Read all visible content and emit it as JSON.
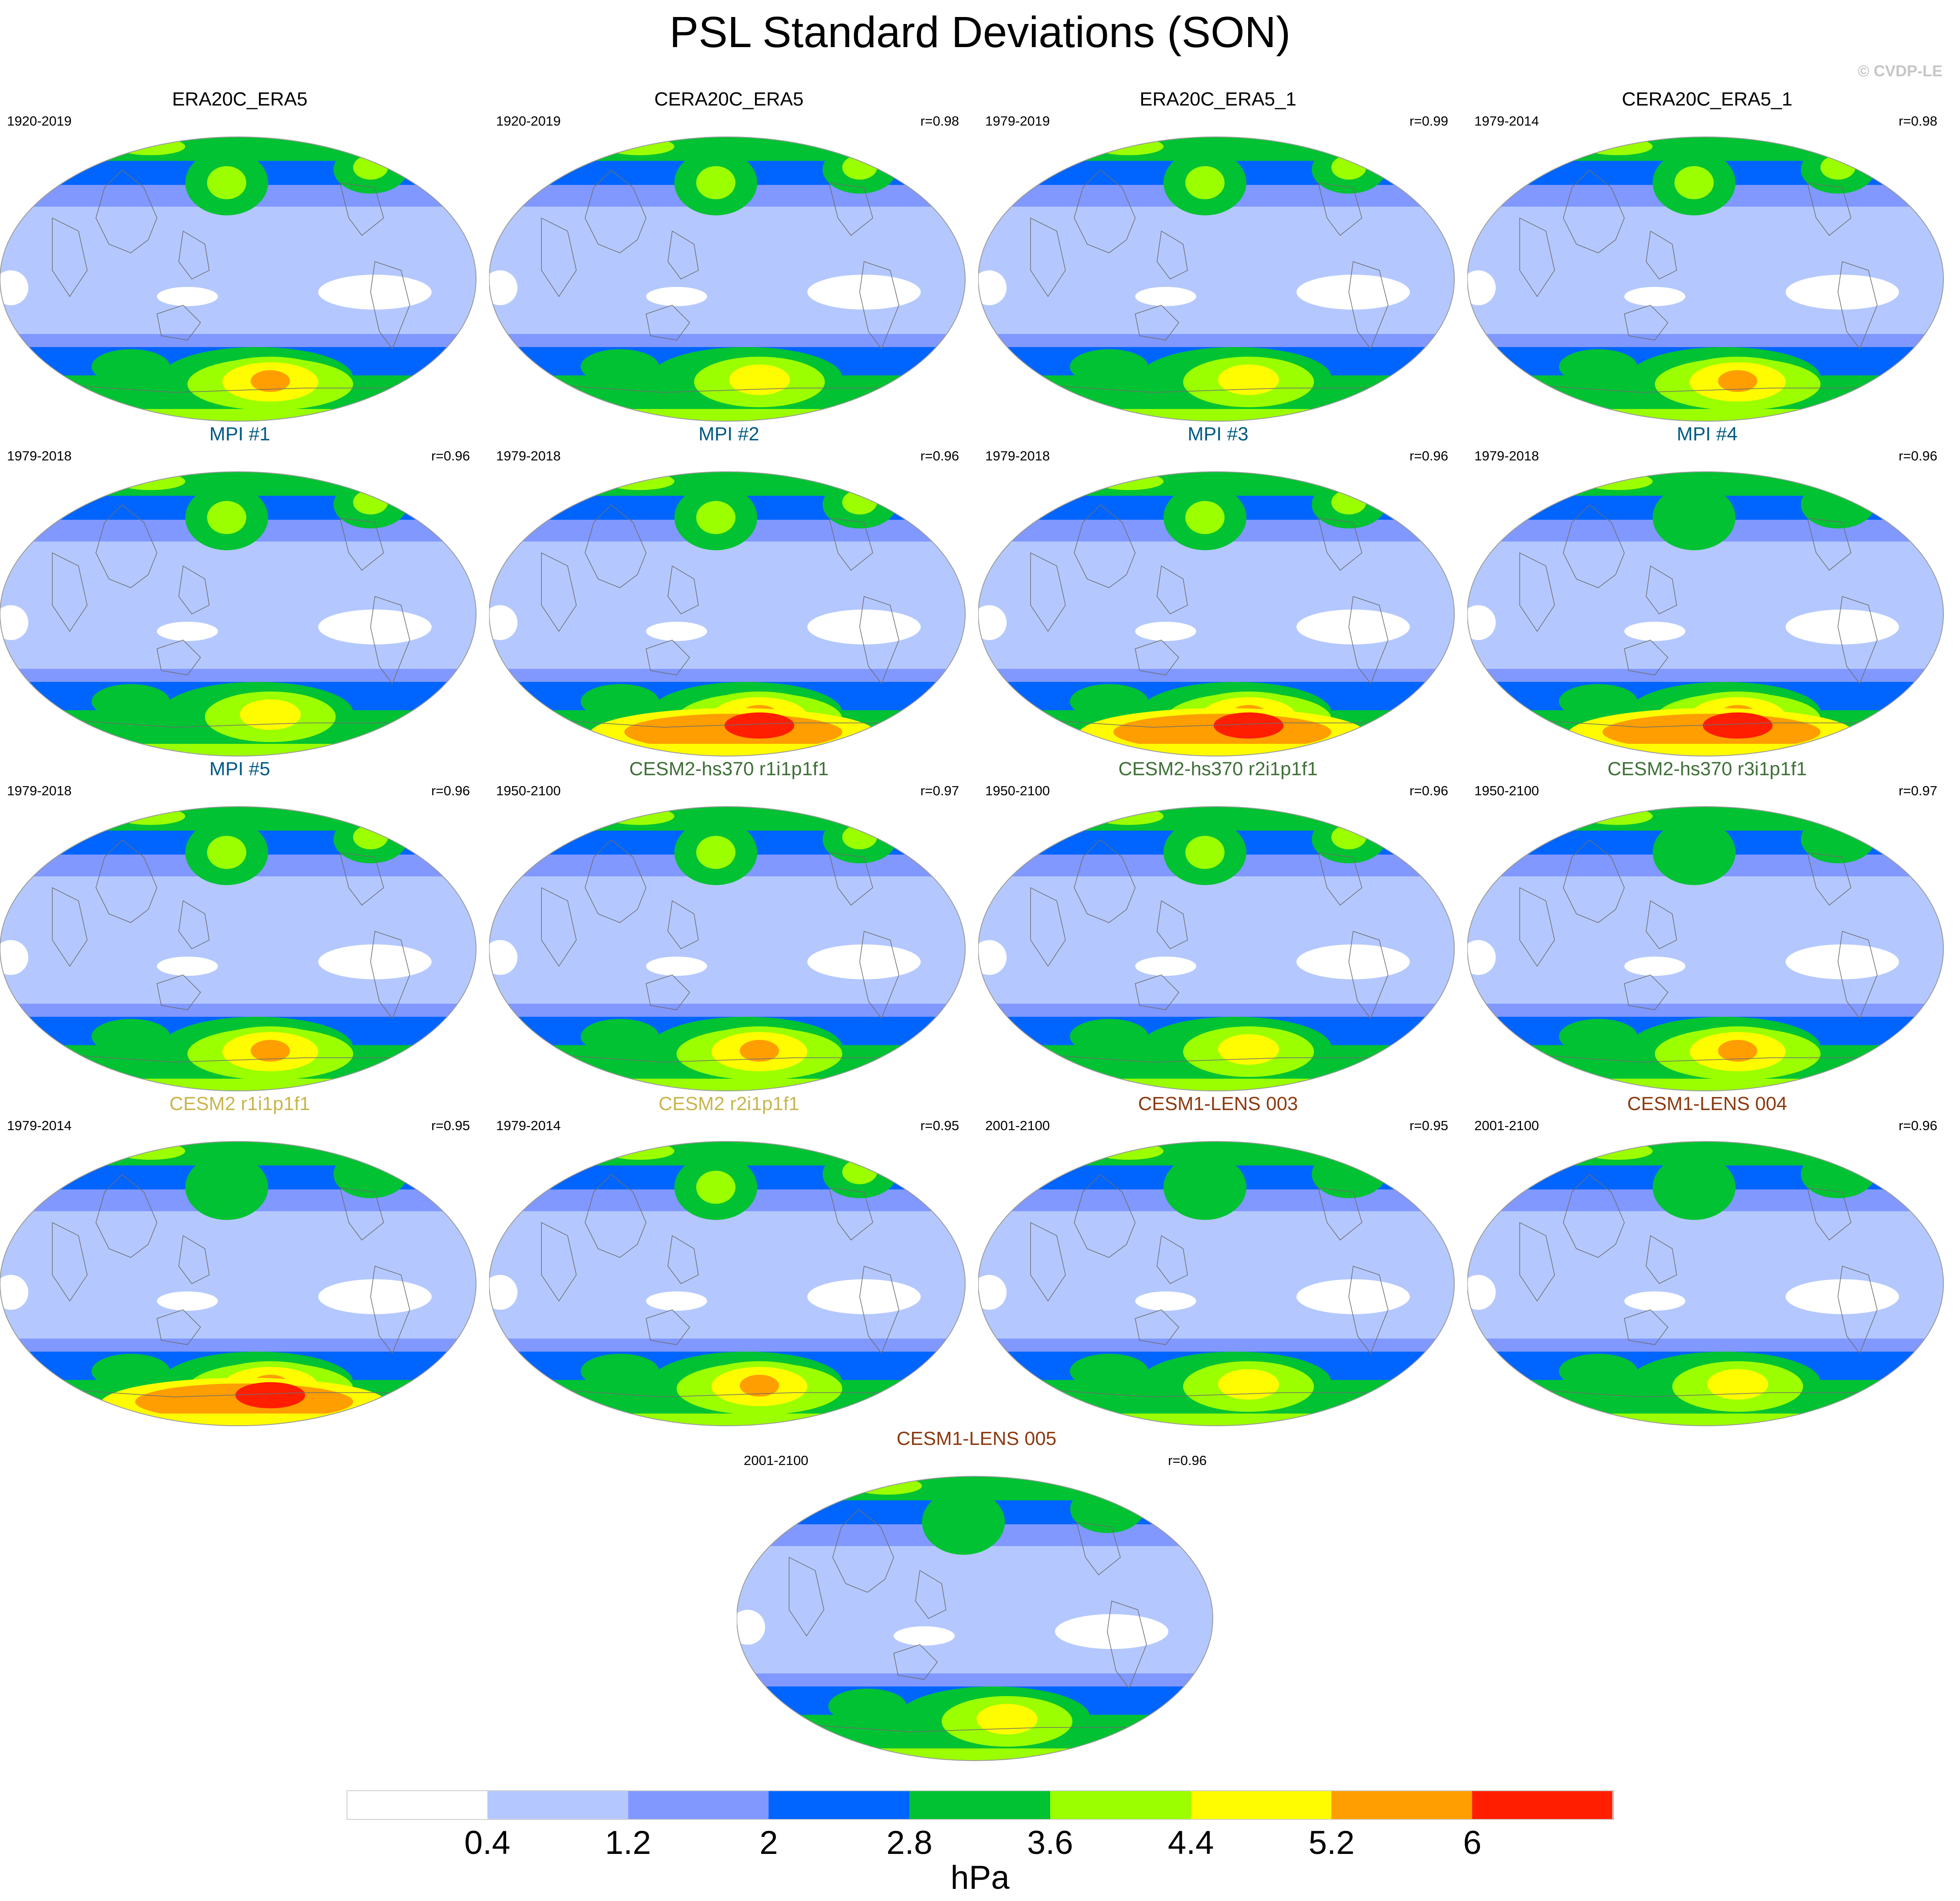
{
  "title": "PSL Standard Deviations (SON)",
  "copyright": "© CVDP-LE",
  "colorbar": {
    "colors": [
      "#ffffff",
      "#b4c8ff",
      "#8098ff",
      "#0064ff",
      "#00c232",
      "#9bff00",
      "#fffb00",
      "#ff9e00",
      "#ff1e00"
    ],
    "labels": [
      "0.4",
      "1.2",
      "2",
      "2.8",
      "3.6",
      "4.4",
      "5.2",
      "6"
    ],
    "units": "hPa"
  },
  "panels": [
    {
      "title": "ERA20C_ERA5",
      "color": "#000000",
      "period": "1920-2019",
      "corr": "",
      "south_peak": 4,
      "north_peak": 3
    },
    {
      "title": "CERA20C_ERA5",
      "color": "#000000",
      "period": "1920-2019",
      "corr": "r=0.98",
      "south_peak": 3,
      "north_peak": 3
    },
    {
      "title": "ERA20C_ERA5_1",
      "color": "#000000",
      "period": "1979-2019",
      "corr": "r=0.99",
      "south_peak": 3,
      "north_peak": 3
    },
    {
      "title": "CERA20C_ERA5_1",
      "color": "#000000",
      "period": "1979-2014",
      "corr": "r=0.98",
      "south_peak": 4,
      "north_peak": 3
    },
    {
      "title": "MPI #1",
      "color": "#005a82",
      "period": "1979-2018",
      "corr": "r=0.96",
      "south_peak": 3,
      "north_peak": 3
    },
    {
      "title": "MPI #2",
      "color": "#005a82",
      "period": "1979-2018",
      "corr": "r=0.96",
      "south_peak": 5,
      "north_peak": 3
    },
    {
      "title": "MPI #3",
      "color": "#005a82",
      "period": "1979-2018",
      "corr": "r=0.96",
      "south_peak": 5,
      "north_peak": 3
    },
    {
      "title": "MPI #4",
      "color": "#005a82",
      "period": "1979-2018",
      "corr": "r=0.96",
      "south_peak": 5,
      "north_peak": 2
    },
    {
      "title": "MPI #5",
      "color": "#005a82",
      "period": "1979-2018",
      "corr": "r=0.96",
      "south_peak": 4,
      "north_peak": 3
    },
    {
      "title": "CESM2-hs370 r1i1p1f1",
      "color": "#3f7038",
      "period": "1950-2100",
      "corr": "r=0.97",
      "south_peak": 4,
      "north_peak": 3
    },
    {
      "title": "CESM2-hs370 r2i1p1f1",
      "color": "#3f7038",
      "period": "1950-2100",
      "corr": "r=0.96",
      "south_peak": 3,
      "north_peak": 3
    },
    {
      "title": "CESM2-hs370 r3i1p1f1",
      "color": "#3f7038",
      "period": "1950-2100",
      "corr": "r=0.97",
      "south_peak": 4,
      "north_peak": 2
    },
    {
      "title": "CESM2 r1i1p1f1",
      "color": "#c8b54e",
      "period": "1979-2014",
      "corr": "r=0.95",
      "south_peak": 5,
      "north_peak": 2
    },
    {
      "title": "CESM2 r2i1p1f1",
      "color": "#c8b54e",
      "period": "1979-2014",
      "corr": "r=0.95",
      "south_peak": 4,
      "north_peak": 3
    },
    {
      "title": "CESM1-LENS 003",
      "color": "#8c3a10",
      "period": "2001-2100",
      "corr": "r=0.95",
      "south_peak": 3,
      "north_peak": 2
    },
    {
      "title": "CESM1-LENS 004",
      "color": "#8c3a10",
      "period": "2001-2100",
      "corr": "r=0.96",
      "south_peak": 3,
      "north_peak": 2
    },
    {
      "title": "CESM1-LENS 005",
      "color": "#8c3a10",
      "period": "2001-2100",
      "corr": "r=0.96",
      "south_peak": 3,
      "north_peak": 2
    }
  ]
}
